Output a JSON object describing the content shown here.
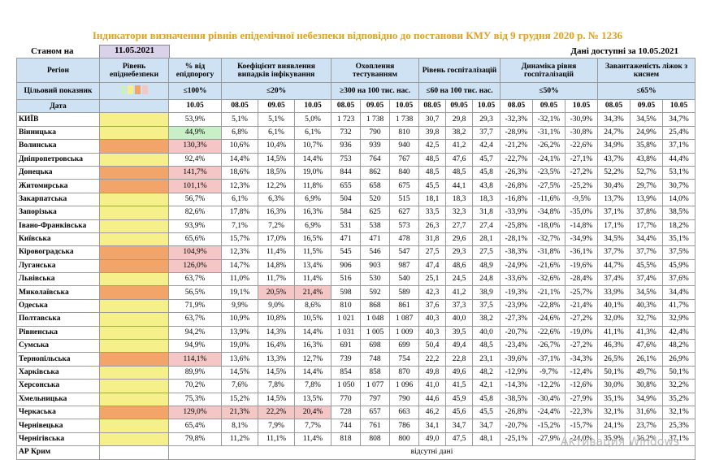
{
  "header": {
    "title": "Індикатори визначення рівнів епідемічної небезпеки відповідно до постанови КМУ від 9 грудня 2020 р. № 1236",
    "as_of_label": "Станом на",
    "as_of_date": "11.05.2021",
    "available": "Дані доступні за 10.05.2021"
  },
  "table": {
    "region_header": "Регіон",
    "target_label": "Цільовий показник",
    "date_label": "Дата",
    "colors": {
      "yellow": "#f6f08a",
      "orange": "#f2a469",
      "red": "#f5c6c6",
      "green": "#c9efc9"
    },
    "groups": [
      {
        "title": "Рівень епіднебезпеки"
      },
      {
        "title": "% від епідпорогу",
        "target": "≤100%",
        "dates": [
          "10.05"
        ]
      },
      {
        "title": "Коефіцієнт виявлення випадків інфікування",
        "target": "≤20%",
        "dates": [
          "08.05",
          "09.05",
          "10.05"
        ]
      },
      {
        "title": "Охоплення тестуванням",
        "target": "≥300 на 100 тис. нас.",
        "dates": [
          "08.05",
          "09.05",
          "10.05"
        ]
      },
      {
        "title": "Рівень госпіталізацій",
        "target": "≤60 на 100 тис. нас.",
        "dates": [
          "08.05",
          "09.05",
          "10.05"
        ]
      },
      {
        "title": "Динаміка рівня госпіталізацій",
        "target": "≤50%",
        "dates": [
          "08.05",
          "09.05",
          "10.05"
        ]
      },
      {
        "title": "Завантаженість ліжок з киснем",
        "target": "≤65%",
        "dates": [
          "08.05",
          "09.05",
          "10.05"
        ]
      }
    ],
    "rows": [
      {
        "region": "КИЇВ",
        "level": "yellow",
        "cells": [
          "53,9%",
          "5,1%",
          "5,1%",
          "5,0%",
          "1 723",
          "1 738",
          "1 738",
          "30,7",
          "29,8",
          "29,3",
          "-32,3%",
          "-32,1%",
          "-30,9%",
          "34,3%",
          "34,5%",
          "34,7%"
        ]
      },
      {
        "region": "Вінницька",
        "level": "yellow",
        "marks": {
          "0": "green"
        },
        "cells": [
          "44,9%",
          "6,8%",
          "6,1%",
          "6,1%",
          "732",
          "790",
          "810",
          "39,8",
          "38,2",
          "37,7",
          "-28,9%",
          "-31,1%",
          "-30,8%",
          "24,7%",
          "24,9%",
          "25,4%"
        ]
      },
      {
        "region": "Волинська",
        "level": "orange",
        "marks": {
          "0": "red"
        },
        "cells": [
          "130,3%",
          "10,6%",
          "10,4%",
          "10,7%",
          "936",
          "939",
          "940",
          "42,5",
          "41,2",
          "42,4",
          "-21,2%",
          "-26,2%",
          "-22,6%",
          "34,9%",
          "35,8%",
          "37,1%"
        ]
      },
      {
        "region": "Дніпропетровська",
        "level": "yellow",
        "cells": [
          "92,4%",
          "14,4%",
          "14,5%",
          "14,4%",
          "753",
          "764",
          "767",
          "48,5",
          "47,6",
          "45,7",
          "-22,7%",
          "-24,1%",
          "-27,1%",
          "43,7%",
          "43,8%",
          "44,4%"
        ]
      },
      {
        "region": "Донецька",
        "level": "orange",
        "marks": {
          "0": "red"
        },
        "cells": [
          "141,7%",
          "18,6%",
          "18,5%",
          "19,0%",
          "844",
          "862",
          "840",
          "48,5",
          "48,5",
          "45,8",
          "-26,3%",
          "-23,5%",
          "-27,2%",
          "52,2%",
          "52,7%",
          "53,1%"
        ]
      },
      {
        "region": "Житомирська",
        "level": "orange",
        "marks": {
          "0": "red"
        },
        "cells": [
          "101,1%",
          "12,3%",
          "12,2%",
          "11,8%",
          "655",
          "658",
          "675",
          "45,5",
          "44,1",
          "43,8",
          "-26,8%",
          "-27,5%",
          "-25,2%",
          "30,4%",
          "29,7%",
          "30,7%"
        ]
      },
      {
        "region": "Закарпатська",
        "level": "yellow",
        "cells": [
          "56,7%",
          "6,1%",
          "6,3%",
          "6,9%",
          "504",
          "520",
          "515",
          "18,1",
          "18,3",
          "18,3",
          "-16,8%",
          "-11,6%",
          "-9,5%",
          "13,7%",
          "13,9%",
          "14,0%"
        ]
      },
      {
        "region": "Запорізька",
        "level": "yellow",
        "cells": [
          "82,6%",
          "17,8%",
          "16,3%",
          "16,3%",
          "584",
          "625",
          "627",
          "33,5",
          "32,3",
          "31,8",
          "-33,9%",
          "-34,8%",
          "-35,0%",
          "37,1%",
          "37,8%",
          "38,5%"
        ]
      },
      {
        "region": "Івано-Франківська",
        "level": "yellow",
        "cells": [
          "93,9%",
          "7,1%",
          "7,2%",
          "6,9%",
          "531",
          "538",
          "573",
          "26,3",
          "27,7",
          "27,4",
          "-25,8%",
          "-18,0%",
          "-14,8%",
          "17,1%",
          "17,7%",
          "18,2%"
        ]
      },
      {
        "region": "Київська",
        "level": "yellow",
        "cells": [
          "65,6%",
          "15,7%",
          "17,0%",
          "16,5%",
          "471",
          "471",
          "478",
          "31,8",
          "29,6",
          "28,1",
          "-28,1%",
          "-32,7%",
          "-34,9%",
          "34,5%",
          "34,4%",
          "35,1%"
        ]
      },
      {
        "region": "Кіровоградська",
        "level": "orange",
        "marks": {
          "0": "red"
        },
        "cells": [
          "104,9%",
          "12,3%",
          "11,4%",
          "11,5%",
          "545",
          "546",
          "547",
          "27,5",
          "29,3",
          "27,5",
          "-38,3%",
          "-31,8%",
          "-36,1%",
          "37,7%",
          "37,7%",
          "37,5%"
        ]
      },
      {
        "region": "Луганська",
        "level": "orange",
        "marks": {
          "0": "red"
        },
        "cells": [
          "126,0%",
          "14,7%",
          "14,8%",
          "13,4%",
          "906",
          "903",
          "987",
          "47,4",
          "48,6",
          "48,9",
          "-24,9%",
          "-21,6%",
          "-19,6%",
          "44,7%",
          "45,5%",
          "45,9%"
        ]
      },
      {
        "region": "Львівська",
        "level": "yellow",
        "cells": [
          "63,7%",
          "11,0%",
          "11,7%",
          "11,4%",
          "516",
          "530",
          "540",
          "25,1",
          "24,5",
          "24,8",
          "-33,6%",
          "-32,6%",
          "-28,4%",
          "37,4%",
          "37,4%",
          "37,6%"
        ]
      },
      {
        "region": "Миколаївська",
        "level": "orange",
        "marks": {
          "2": "red",
          "3": "red"
        },
        "cells": [
          "56,5%",
          "19,1%",
          "20,5%",
          "21,4%",
          "598",
          "592",
          "589",
          "42,3",
          "41,2",
          "38,9",
          "-19,3%",
          "-21,1%",
          "-25,7%",
          "33,9%",
          "34,5%",
          "34,4%"
        ]
      },
      {
        "region": "Одеська",
        "level": "yellow",
        "cells": [
          "71,9%",
          "9,9%",
          "9,0%",
          "8,6%",
          "810",
          "868",
          "861",
          "37,6",
          "37,3",
          "37,5",
          "-23,9%",
          "-22,8%",
          "-21,4%",
          "40,1%",
          "40,3%",
          "41,7%"
        ]
      },
      {
        "region": "Полтавська",
        "level": "yellow",
        "cells": [
          "63,7%",
          "10,9%",
          "10,8%",
          "10,5%",
          "1 021",
          "1 048",
          "1 087",
          "40,3",
          "40,0",
          "38,2",
          "-27,3%",
          "-24,6%",
          "-27,2%",
          "32,0%",
          "32,7%",
          "32,9%"
        ]
      },
      {
        "region": "Рівненська",
        "level": "yellow",
        "cells": [
          "94,2%",
          "13,9%",
          "14,3%",
          "14,4%",
          "1 031",
          "1 005",
          "1 009",
          "40,3",
          "39,5",
          "40,0",
          "-20,7%",
          "-22,6%",
          "-19,0%",
          "41,1%",
          "41,3%",
          "42,4%"
        ]
      },
      {
        "region": "Сумська",
        "level": "yellow",
        "cells": [
          "94,9%",
          "19,0%",
          "16,4%",
          "16,3%",
          "691",
          "698",
          "699",
          "50,4",
          "49,4",
          "48,5",
          "-23,4%",
          "-26,7%",
          "-27,2%",
          "46,3%",
          "47,6%",
          "48,2%"
        ]
      },
      {
        "region": "Тернопільська",
        "level": "orange",
        "marks": {
          "0": "red"
        },
        "cells": [
          "114,1%",
          "13,6%",
          "13,3%",
          "12,7%",
          "739",
          "748",
          "754",
          "22,2",
          "22,8",
          "23,1",
          "-39,6%",
          "-37,1%",
          "-34,3%",
          "26,5%",
          "26,1%",
          "26,9%"
        ]
      },
      {
        "region": "Харківська",
        "level": "yellow",
        "cells": [
          "89,9%",
          "14,5%",
          "14,5%",
          "14,4%",
          "854",
          "858",
          "870",
          "49,8",
          "49,6",
          "48,2",
          "-12,9%",
          "-9,7%",
          "-12,4%",
          "50,1%",
          "49,7%",
          "50,1%"
        ]
      },
      {
        "region": "Херсонська",
        "level": "yellow",
        "cells": [
          "70,2%",
          "7,6%",
          "7,8%",
          "7,8%",
          "1 050",
          "1 077",
          "1 096",
          "41,0",
          "41,5",
          "42,1",
          "-14,3%",
          "-12,2%",
          "-12,6%",
          "30,0%",
          "30,8%",
          "32,2%"
        ]
      },
      {
        "region": "Хмельницька",
        "level": "yellow",
        "cells": [
          "75,3%",
          "15,2%",
          "14,5%",
          "13,5%",
          "770",
          "797",
          "790",
          "44,6",
          "45,9",
          "45,8",
          "-38,5%",
          "-30,4%",
          "-27,9%",
          "35,1%",
          "34,9%",
          "35,2%"
        ]
      },
      {
        "region": "Черкаська",
        "level": "orange",
        "marks": {
          "0": "red",
          "1": "red",
          "2": "red",
          "3": "red"
        },
        "cells": [
          "129,0%",
          "21,3%",
          "22,2%",
          "20,4%",
          "728",
          "657",
          "663",
          "46,2",
          "45,6",
          "45,5",
          "-26,8%",
          "-24,4%",
          "-22,3%",
          "32,1%",
          "31,6%",
          "32,1%"
        ]
      },
      {
        "region": "Чернівецька",
        "level": "yellow",
        "cells": [
          "65,4%",
          "8,1%",
          "7,9%",
          "7,7%",
          "744",
          "761",
          "786",
          "34,1",
          "34,7",
          "34,7",
          "-20,7%",
          "-15,2%",
          "-15,7%",
          "24,1%",
          "23,7%",
          "25,3%"
        ]
      },
      {
        "region": "Чернігівська",
        "level": "yellow",
        "cells": [
          "79,8%",
          "11,2%",
          "11,1%",
          "11,4%",
          "818",
          "808",
          "800",
          "49,0",
          "47,5",
          "48,1",
          "-25,1%",
          "-27,9%",
          "-24,0%",
          "35,9%",
          "36,2%",
          "37,1%"
        ]
      }
    ],
    "last_row": {
      "region": "АР Крим",
      "note": "відсутні дані"
    }
  },
  "watermark": "Активация Windows"
}
